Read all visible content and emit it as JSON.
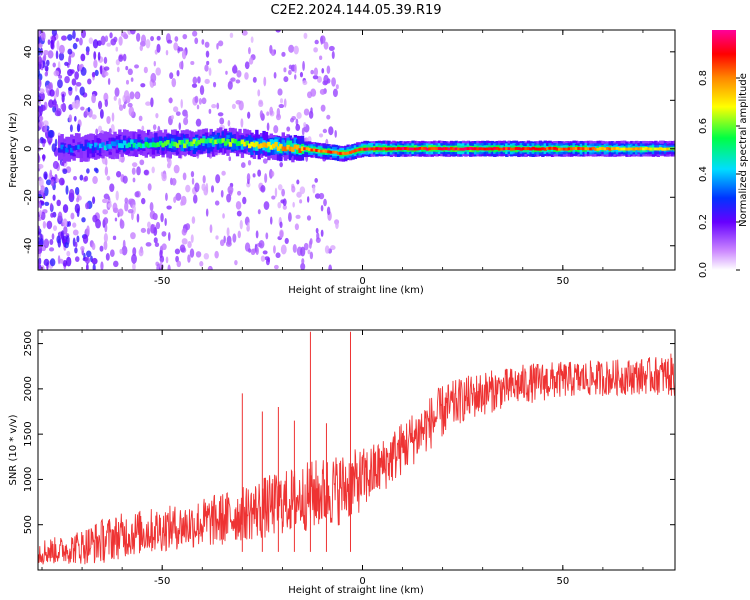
{
  "title": "C2E2.2024.144.05.39.R19",
  "panels": {
    "spectrogram": {
      "xlabel": "Height of straight line (km)",
      "ylabel": "Frequency (Hz)",
      "x_ticks": [
        "-50",
        "0",
        "50"
      ],
      "y_ticks": [
        "-40",
        "-20",
        "0",
        "20",
        "40"
      ],
      "colorbar": {
        "label": "Normalized spectral amplitude",
        "ticks": [
          "0.0",
          "0.2",
          "0.4",
          "0.6",
          "0.8"
        ]
      }
    },
    "snr": {
      "xlabel": "Height of straight line (km)",
      "ylabel": "SNR (10 * v/v)",
      "x_ticks": [
        "-50",
        "0",
        "50"
      ],
      "y_ticks": [
        "500",
        "1000",
        "1500",
        "2000",
        "2500"
      ]
    }
  },
  "colors": {
    "snr_line": "#ee3333",
    "band_core": "#dd1111",
    "scatter": "#8a2be2"
  },
  "chart_data": [
    {
      "type": "heatmap",
      "title": "C2E2.2024.144.05.39.R19",
      "xlabel": "Height of straight line (km)",
      "ylabel": "Frequency (Hz)",
      "xlim": [
        -81,
        78
      ],
      "ylim": [
        -50,
        49
      ],
      "colorbar_label": "Normalized spectral amplitude",
      "colorbar_range": [
        0,
        1
      ],
      "colormap": "rainbow (white-purple-blue-cyan-green-yellow-orange-red-pink)",
      "band": {
        "description_points": [
          {
            "x": -75,
            "freq": 0,
            "amplitude": 0.3
          },
          {
            "x": -60,
            "freq": 2,
            "amplitude": 0.45
          },
          {
            "x": -45,
            "freq": 2,
            "amplitude": 0.6
          },
          {
            "x": -35,
            "freq": 3,
            "amplitude": 0.6
          },
          {
            "x": -15,
            "freq": 0,
            "amplitude": 0.85
          },
          {
            "x": -5,
            "freq": -2,
            "amplitude": 0.9
          },
          {
            "x": 0,
            "freq": 0,
            "amplitude": 0.95
          },
          {
            "x": 25,
            "freq": 0,
            "amplitude": 0.95
          },
          {
            "x": 50,
            "freq": 0,
            "amplitude": 0.9
          },
          {
            "x": 78,
            "freq": 0,
            "amplitude": 0.7
          }
        ]
      },
      "grid": false
    },
    {
      "type": "line",
      "xlabel": "Height of straight line (km)",
      "ylabel": "SNR (10 * v/v)",
      "xlim": [
        -81,
        78
      ],
      "ylim": [
        0,
        2650
      ],
      "grid": false,
      "series": [
        {
          "x": [
            -81,
            -75,
            -70,
            -65,
            -60,
            -55,
            -50,
            -45,
            -40,
            -35,
            -30,
            -25,
            -20,
            -15,
            -10,
            -5,
            0,
            5,
            10,
            15,
            20,
            25,
            30,
            35,
            40,
            45,
            50,
            55,
            60,
            65,
            70,
            75,
            78
          ],
          "values": [
            200,
            220,
            260,
            320,
            380,
            420,
            450,
            480,
            520,
            560,
            620,
            680,
            740,
            800,
            850,
            900,
            1000,
            1150,
            1350,
            1550,
            1750,
            1880,
            1950,
            2000,
            2050,
            2080,
            2100,
            2110,
            2120,
            2130,
            2140,
            2150,
            2150
          ],
          "noise_amplitude": [
            150,
            150,
            200,
            250,
            250,
            250,
            250,
            250,
            280,
            300,
            300,
            350,
            350,
            380,
            400,
            400,
            350,
            300,
            300,
            300,
            300,
            250,
            250,
            220,
            220,
            220,
            200,
            200,
            200,
            200,
            200,
            220,
            250
          ]
        }
      ],
      "spikes": [
        {
          "x": -30,
          "value": 1950
        },
        {
          "x": -25,
          "value": 1750
        },
        {
          "x": -21,
          "value": 1800
        },
        {
          "x": -17,
          "value": 1650
        },
        {
          "x": -13,
          "value": 2630
        },
        {
          "x": -9,
          "value": 1620
        },
        {
          "x": -3,
          "value": 2630
        }
      ]
    }
  ]
}
